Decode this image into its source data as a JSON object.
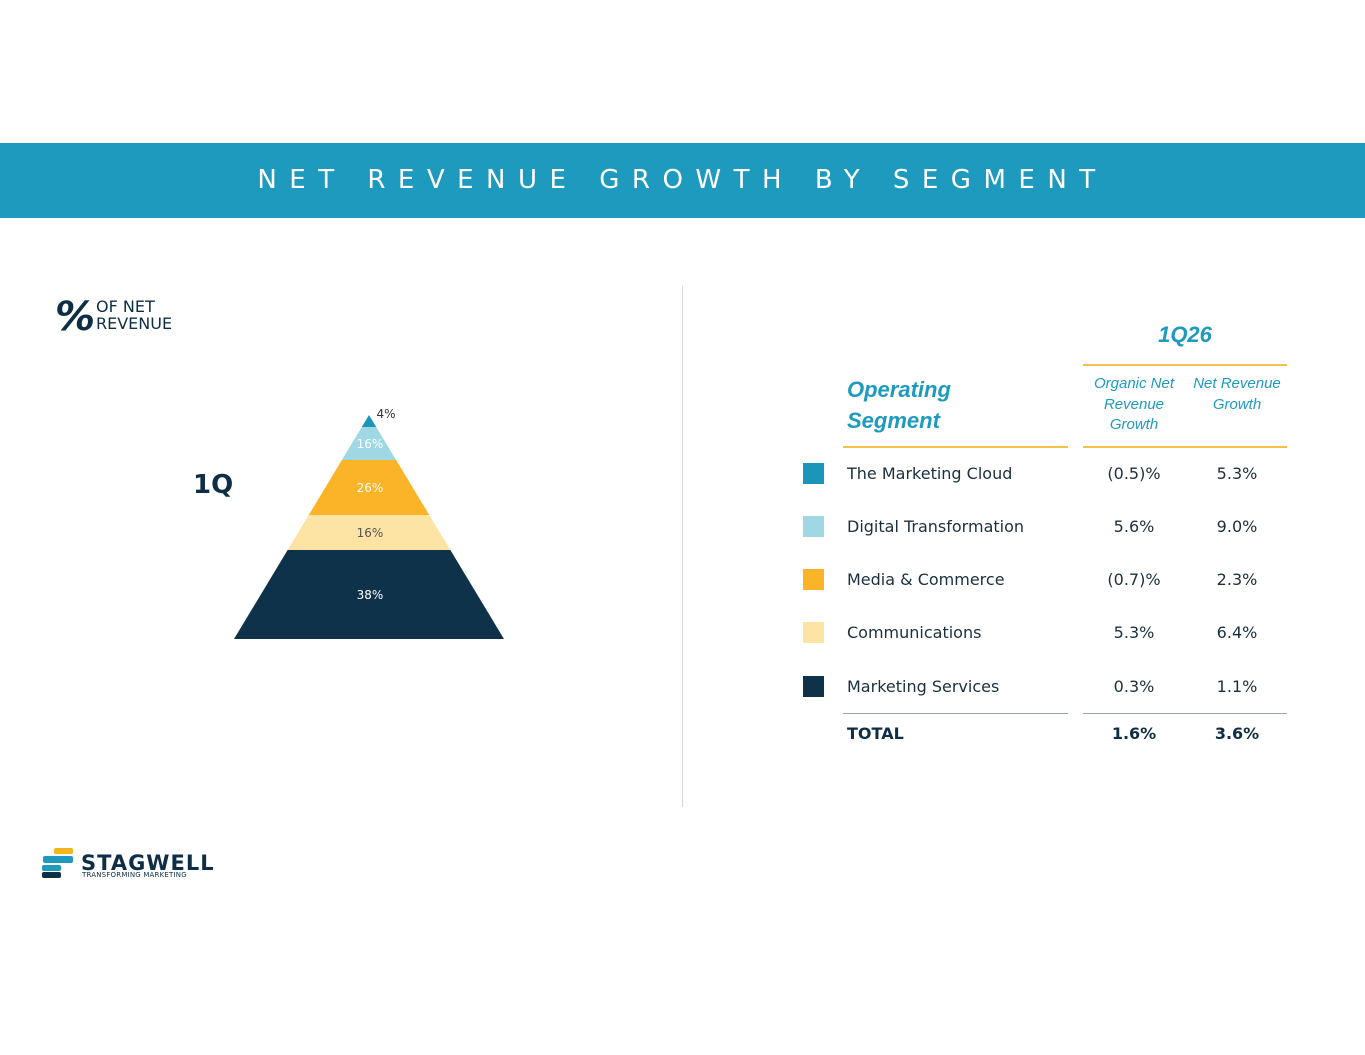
{
  "header": {
    "title": "NET REVENUE GROWTH BY SEGMENT"
  },
  "legend_title": {
    "symbol": "%",
    "text": "OF NET REVENUE"
  },
  "chart_data": {
    "type": "pyramid",
    "period_label": "1Q",
    "segments": [
      {
        "name": "The Marketing Cloud",
        "share": 4,
        "label": "4%",
        "color": "#1b95b8"
      },
      {
        "name": "Digital Transformation",
        "share": 16,
        "label": "16%",
        "color": "#9fd8e4"
      },
      {
        "name": "Media & Commerce",
        "share": 26,
        "label": "26%",
        "color": "#fbb328"
      },
      {
        "name": "Communications",
        "share": 16,
        "label": "16%",
        "color": "#fde3a4"
      },
      {
        "name": "Marketing Services",
        "share": 38,
        "label": "38%",
        "color": "#0e3249"
      }
    ]
  },
  "table": {
    "period": "1Q26",
    "segment_header": "Operating Segment",
    "columns": [
      "Organic Net Revenue Growth",
      "Net Revenue Growth"
    ],
    "rows": [
      {
        "name": "The Marketing Cloud",
        "organic": "(0.5)%",
        "net": "5.3%",
        "color": "#1b95b8"
      },
      {
        "name": "Digital Transformation",
        "organic": "5.6%",
        "net": "9.0%",
        "color": "#9fd8e4"
      },
      {
        "name": "Media & Commerce",
        "organic": "(0.7)%",
        "net": "2.3%",
        "color": "#fbb328"
      },
      {
        "name": "Communications",
        "organic": "5.3%",
        "net": "6.4%",
        "color": "#fde3a4"
      },
      {
        "name": "Marketing Services",
        "organic": "0.3%",
        "net": "1.1%",
        "color": "#0e3249"
      }
    ],
    "total": {
      "name": "TOTAL",
      "organic": "1.6%",
      "net": "3.6%"
    }
  },
  "logo": {
    "word": "STAGWELL",
    "tagline": "TRANSFORMING MARKETING"
  }
}
